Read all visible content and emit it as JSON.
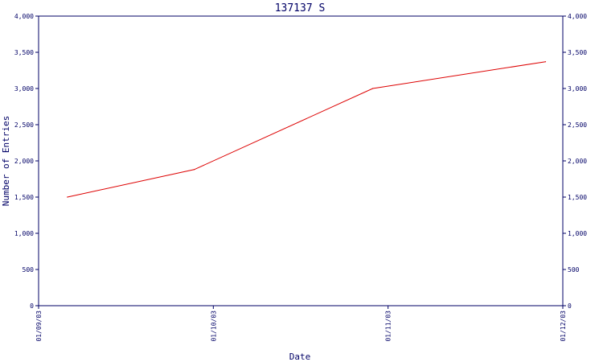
{
  "chart_data": {
    "type": "line",
    "title": "137137 S",
    "xlabel": "Date",
    "ylabel": "Number of Entries",
    "x_ticks": [
      "01/09/03",
      "01/10/03",
      "01/11/03",
      "01/12/03"
    ],
    "y_ticks": [
      "0",
      "500",
      "1,000",
      "1,500",
      "2,000",
      "2,500",
      "3,000",
      "3,500",
      "4,000"
    ],
    "ylim": [
      0,
      4000
    ],
    "xlim": [
      "2003-09-01",
      "2003-12-01"
    ],
    "grid": false,
    "right_axis": true,
    "series": [
      {
        "color": "#dd0000",
        "points": [
          {
            "x": "2003-09-06",
            "y": 1500
          },
          {
            "x": "2003-09-28",
            "y": 1880
          },
          {
            "x": "2003-10-29",
            "y": 3000
          },
          {
            "x": "2003-11-28",
            "y": 3370
          }
        ]
      }
    ]
  },
  "colors": {
    "axis": "#000066",
    "line": "#dd0000",
    "background": "#ffffff"
  }
}
